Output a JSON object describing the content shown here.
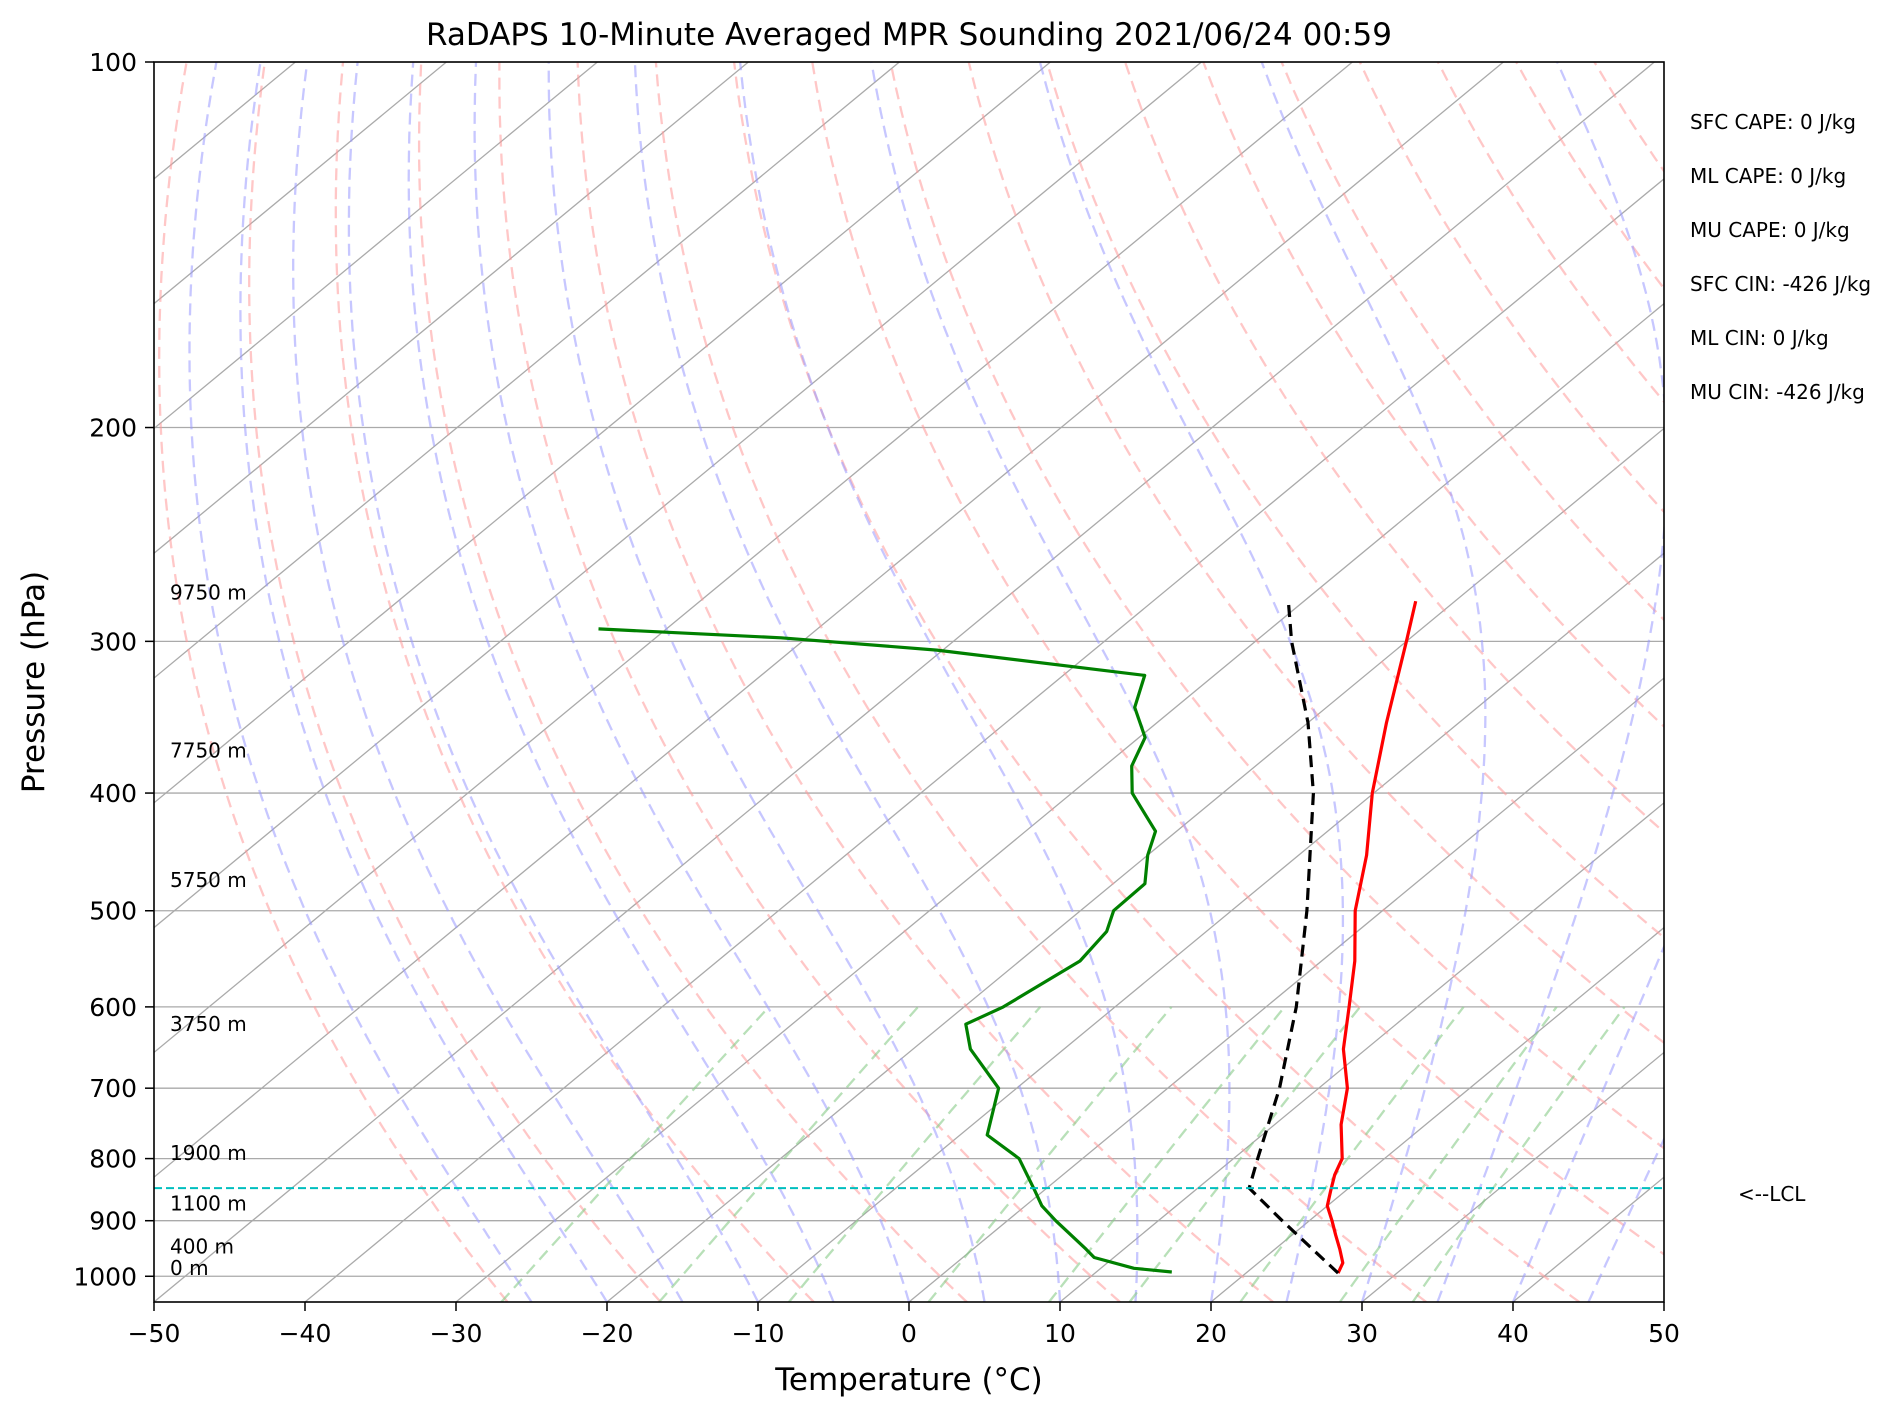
{
  "chart_data": {
    "type": "line",
    "subtype": "skew-t log-p",
    "title": "RaDAPS 10-Minute Averaged MPR Sounding 2021/06/24 00:59",
    "xlabel": "Temperature (°C)",
    "ylabel": "Pressure (hPa)",
    "xlim": [
      -50,
      50
    ],
    "ylim": [
      1050,
      100
    ],
    "y_scale": "log",
    "x_ticks": [
      "−50",
      "−40",
      "−30",
      "−20",
      "−10",
      "0",
      "10",
      "20",
      "30",
      "40",
      "50"
    ],
    "x_tick_values": [
      -50,
      -40,
      -30,
      -20,
      -10,
      0,
      10,
      20,
      30,
      40,
      50
    ],
    "y_ticks": [
      "100",
      "200",
      "300",
      "400",
      "500",
      "600",
      "700",
      "800",
      "900",
      "1000"
    ],
    "y_tick_values": [
      100,
      200,
      300,
      400,
      500,
      600,
      700,
      800,
      900,
      1000
    ],
    "grid": true,
    "series": [
      {
        "color": "#ff0000",
        "points": [
          {
            "p": 994,
            "t": 26.1
          },
          {
            "p": 975,
            "t": 25.6
          },
          {
            "p": 950,
            "t": 24.3
          },
          {
            "p": 925,
            "t": 22.9
          },
          {
            "p": 900,
            "t": 21.5
          },
          {
            "p": 875,
            "t": 20.0
          },
          {
            "p": 850,
            "t": 19.0
          },
          {
            "p": 825,
            "t": 18.0
          },
          {
            "p": 800,
            "t": 17.2
          },
          {
            "p": 750,
            "t": 14.4
          },
          {
            "p": 700,
            "t": 11.9
          },
          {
            "p": 650,
            "t": 8.5
          },
          {
            "p": 600,
            "t": 5.5
          },
          {
            "p": 550,
            "t": 2.2
          },
          {
            "p": 500,
            "t": -1.8
          },
          {
            "p": 450,
            "t": -5.5
          },
          {
            "p": 400,
            "t": -10.1
          },
          {
            "p": 350,
            "t": -14.8
          },
          {
            "p": 300,
            "t": -20.0
          },
          {
            "p": 278,
            "t": -22.6
          }
        ]
      },
      {
        "color": "#008000",
        "points": [
          {
            "p": 992,
            "t": 15.0
          },
          {
            "p": 985,
            "t": 12.2
          },
          {
            "p": 965,
            "t": 8.7
          },
          {
            "p": 950,
            "t": 7.5
          },
          {
            "p": 900,
            "t": 3.2
          },
          {
            "p": 875,
            "t": 1.1
          },
          {
            "p": 850,
            "t": -0.6
          },
          {
            "p": 800,
            "t": -4.2
          },
          {
            "p": 765,
            "t": -8.2
          },
          {
            "p": 700,
            "t": -11.2
          },
          {
            "p": 650,
            "t": -16.2
          },
          {
            "p": 620,
            "t": -18.5
          },
          {
            "p": 600,
            "t": -17.4
          },
          {
            "p": 550,
            "t": -16.0
          },
          {
            "p": 520,
            "t": -16.6
          },
          {
            "p": 500,
            "t": -17.8
          },
          {
            "p": 475,
            "t": -17.9
          },
          {
            "p": 450,
            "t": -20.0
          },
          {
            "p": 430,
            "t": -21.4
          },
          {
            "p": 400,
            "t": -26.0
          },
          {
            "p": 380,
            "t": -28.2
          },
          {
            "p": 360,
            "t": -29.6
          },
          {
            "p": 340,
            "t": -32.7
          },
          {
            "p": 320,
            "t": -34.6
          },
          {
            "p": 305,
            "t": -50.4
          },
          {
            "p": 298,
            "t": -61.7
          },
          {
            "p": 293,
            "t": -74.5
          }
        ]
      },
      {
        "color": "#000000",
        "dashed": true,
        "points": [
          {
            "p": 994,
            "t": 26.1
          },
          {
            "p": 900,
            "t": 18.2
          },
          {
            "p": 846,
            "t": 13.4
          },
          {
            "p": 800,
            "t": 11.6
          },
          {
            "p": 700,
            "t": 7.4
          },
          {
            "p": 600,
            "t": 2.0
          },
          {
            "p": 500,
            "t": -5.0
          },
          {
            "p": 400,
            "t": -14.0
          },
          {
            "p": 350,
            "t": -20.0
          },
          {
            "p": 300,
            "t": -27.6
          },
          {
            "p": 277,
            "t": -31.2
          }
        ]
      }
    ],
    "lcl": {
      "p": 846,
      "label": "<--LCL",
      "color": "#00bfbf"
    },
    "height_labels": [
      {
        "text": "9750 m",
        "p": 277
      },
      {
        "text": "7750 m",
        "p": 374
      },
      {
        "text": "5750 m",
        "p": 478
      },
      {
        "text": "3750 m",
        "p": 628
      },
      {
        "text": "1900 m",
        "p": 802
      },
      {
        "text": "1100 m",
        "p": 883
      },
      {
        "text": "400 m",
        "p": 958
      },
      {
        "text": "0 m",
        "p": 998
      }
    ],
    "indices": [
      {
        "text": "SFC CAPE: 0 J/kg"
      },
      {
        "text": "ML CAPE: 0 J/kg"
      },
      {
        "text": "MU CAPE: 0 J/kg"
      },
      {
        "text": "SFC CIN: -426 J/kg"
      },
      {
        "text": "ML CIN: 0 J/kg"
      },
      {
        "text": "MU CIN: -426 J/kg"
      }
    ],
    "reference_lines": {
      "isotherm_color": "#aaaaaa",
      "dry_adiabat_color": "#ff9999",
      "moist_adiabat_color": "#9999ff",
      "mixing_ratio_color": "#88cc88",
      "mixing_ratios_gkg": [
        0.4,
        1,
        2,
        4,
        7,
        10,
        16,
        24,
        32
      ]
    }
  }
}
